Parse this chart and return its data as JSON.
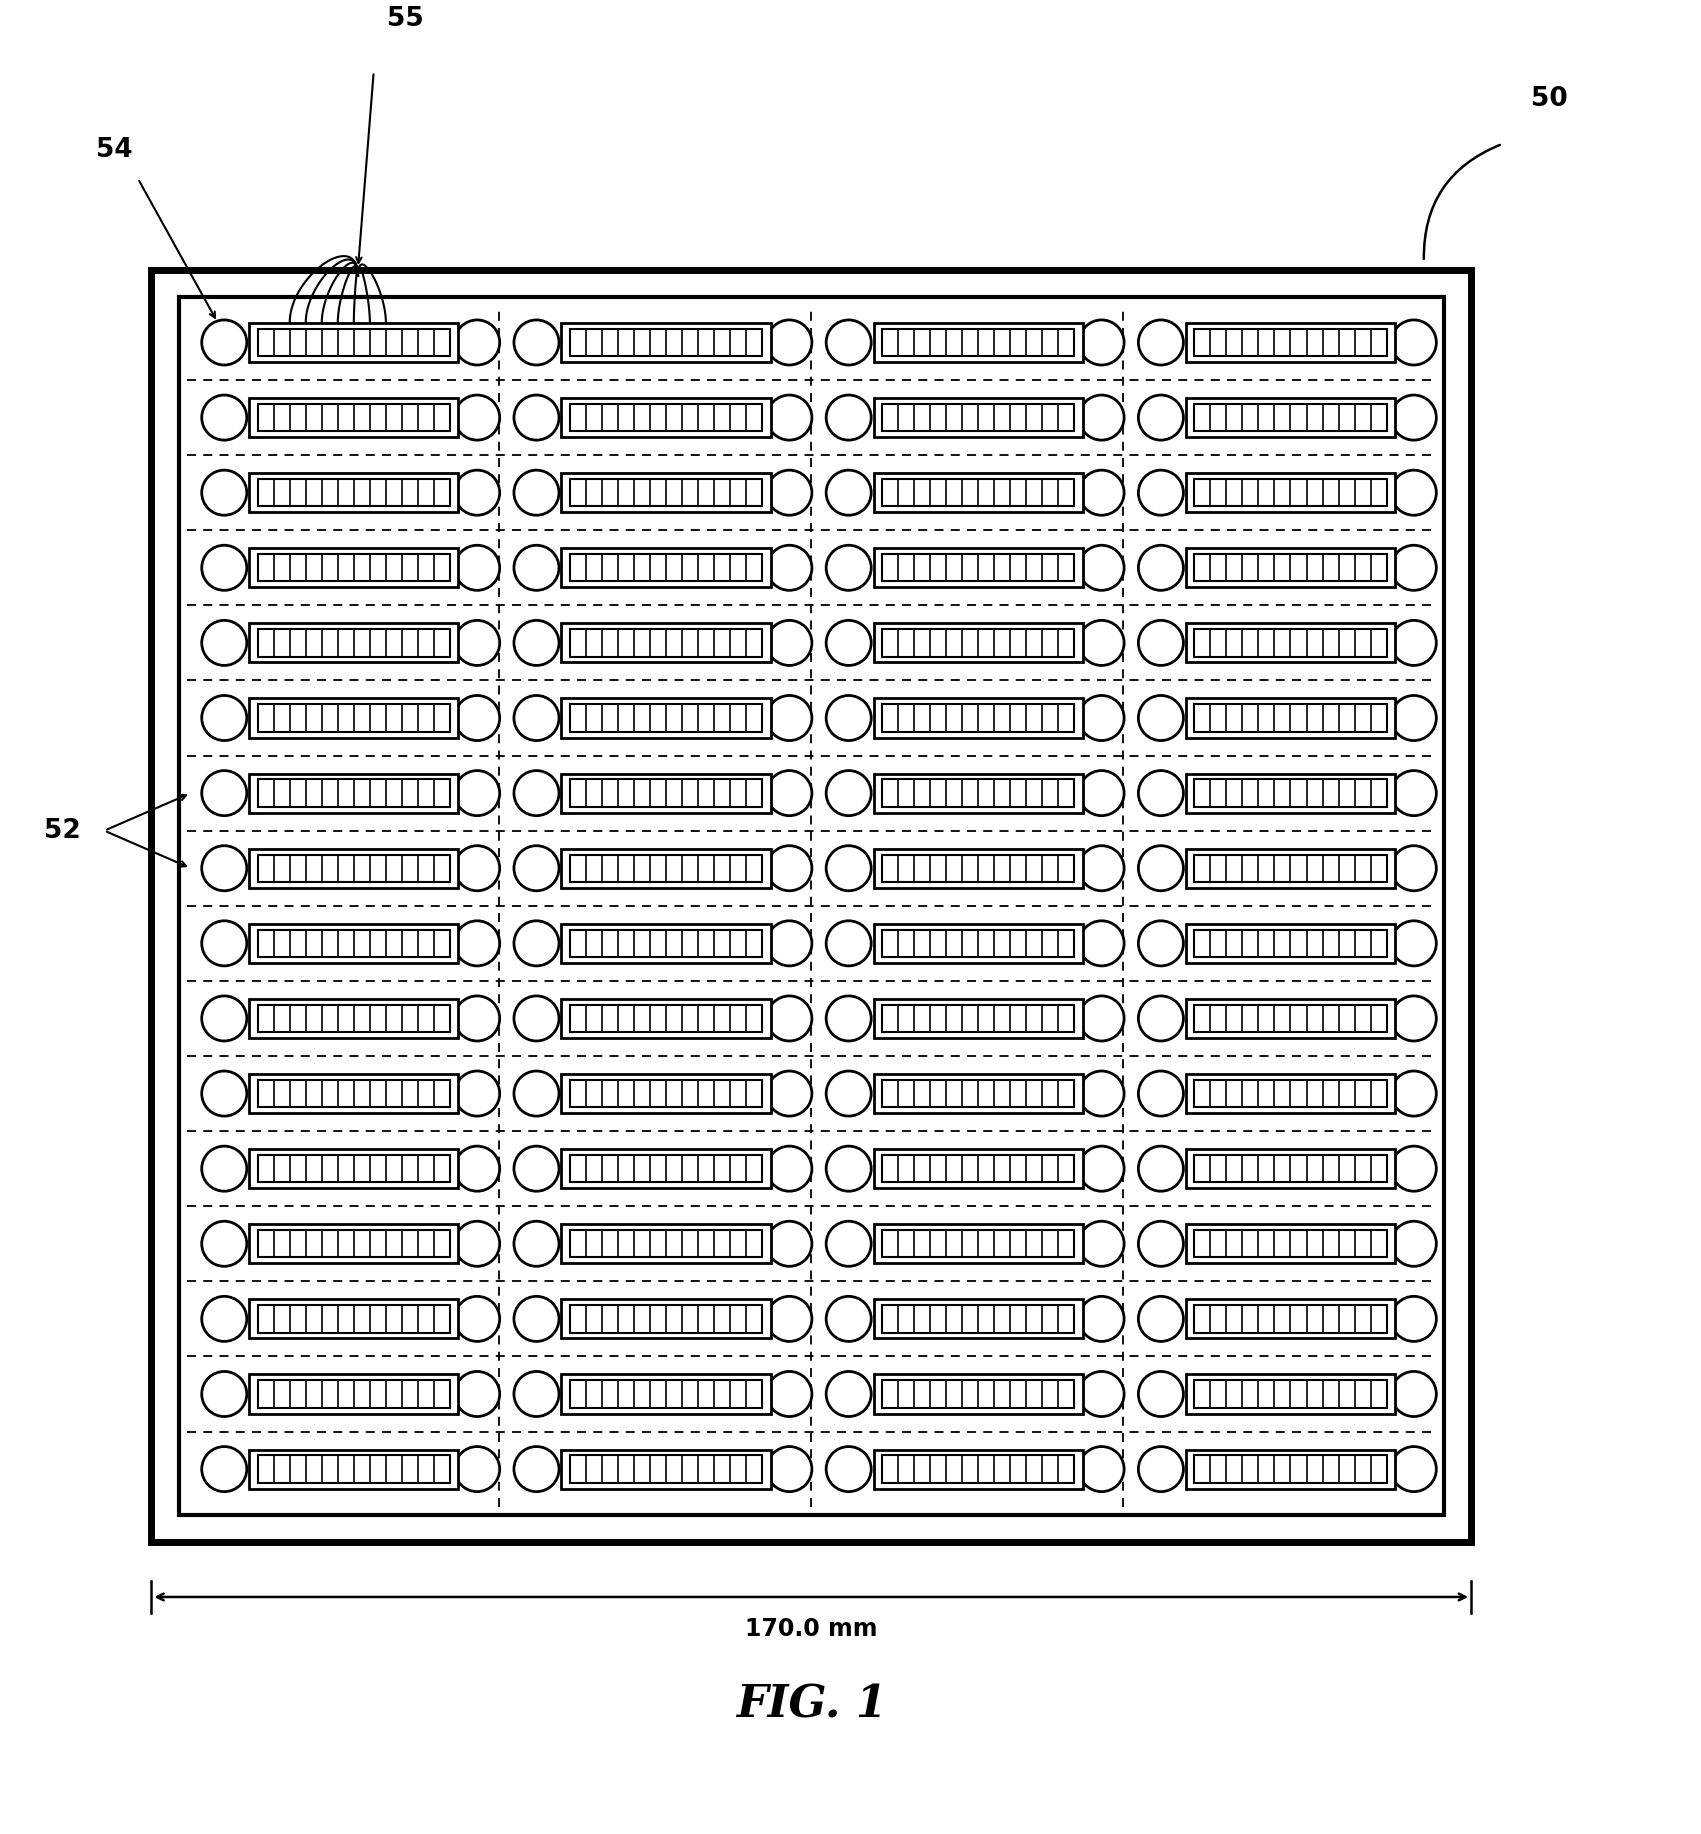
{
  "fig_width": 17.01,
  "fig_height": 18.34,
  "bg_color": "#ffffff",
  "num_cols": 4,
  "num_rows": 16,
  "label_50": "50",
  "label_52": "52",
  "label_54": "54",
  "label_55": "55",
  "dimension_text": "170.0 mm",
  "fig_label": "FIG. 1",
  "num_bars": 11
}
